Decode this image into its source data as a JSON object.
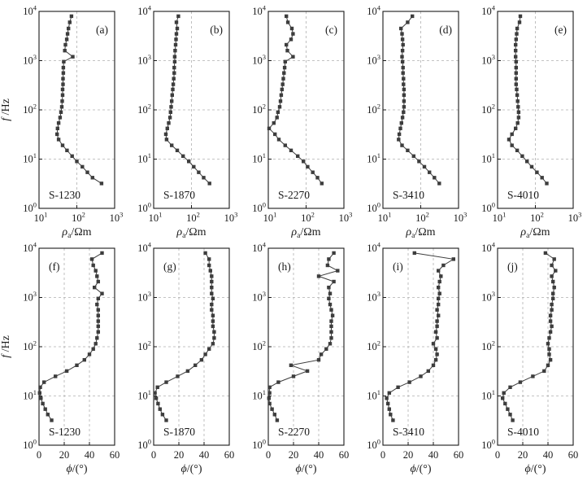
{
  "figure": {
    "background": "#ffffff",
    "curve_color": "#3d3d3d",
    "grid_color": "#b0b0b0",
    "axis_color": "#1a1a1a",
    "ylabel": "f/Hz",
    "y_tick_labels": [
      "10^0",
      "10^1",
      "10^2",
      "10^3",
      "10^4"
    ],
    "rows": [
      {
        "name": "apparent-resistivity",
        "xlabel": "ρa/Ωm",
        "xscale": "log",
        "xlim": [
          10,
          1000
        ],
        "xticks": [
          10,
          100,
          1000
        ],
        "xtick_labels": [
          "10^1",
          "10^2",
          "10^3"
        ],
        "xgrid": [
          100
        ]
      },
      {
        "name": "impedance-phase",
        "xlabel": "ϕ/(°)",
        "xscale": "linear",
        "xlim": [
          0,
          60
        ],
        "xticks": [
          0,
          20,
          40,
          60
        ],
        "xtick_labels": [
          "0",
          "20",
          "40",
          "60"
        ],
        "xgrid": [
          20,
          40
        ]
      }
    ],
    "ylim": [
      1,
      10000
    ],
    "ygrid": [
      10,
      100,
      1000
    ],
    "frequencies": [
      8000,
      6000,
      4500,
      3500,
      2700,
      2100,
      1600,
      1200,
      950,
      720,
      560,
      430,
      330,
      260,
      200,
      150,
      115,
      90,
      70,
      54,
      42,
      32,
      25,
      19,
      15,
      11.5,
      9,
      7,
      5.4,
      4.2,
      3.2
    ]
  },
  "chart_data": [
    {
      "type": "line",
      "panel": "(a)",
      "station": "S-1230",
      "row": 0,
      "col": 0,
      "ylabel_shown": true,
      "values": [
        72,
        65,
        60,
        57,
        54,
        50,
        48,
        78,
        45,
        44,
        44,
        43,
        43,
        42,
        42,
        41,
        40,
        38,
        36,
        33,
        31,
        30,
        33,
        42,
        55,
        75,
        100,
        140,
        190,
        260,
        450
      ]
    },
    {
      "type": "line",
      "panel": "(b)",
      "station": "S-1870",
      "row": 0,
      "col": 1,
      "ylabel_shown": false,
      "values": [
        45,
        40,
        42,
        40,
        39,
        38,
        37,
        36,
        36,
        35,
        35,
        34,
        33,
        32,
        31,
        30,
        29,
        28,
        27,
        25,
        23,
        21,
        22,
        30,
        42,
        60,
        85,
        115,
        155,
        210,
        300
      ]
    },
    {
      "type": "line",
      "panel": "(c)",
      "station": "S-2270",
      "row": 0,
      "col": 2,
      "ylabel_shown": false,
      "values": [
        30,
        33,
        42,
        45,
        40,
        30,
        32,
        45,
        28,
        27,
        26,
        25,
        24,
        23,
        22,
        21,
        20,
        18,
        17,
        14,
        10.5,
        15,
        19,
        28,
        40,
        60,
        85,
        110,
        150,
        200,
        260
      ]
    },
    {
      "type": "line",
      "panel": "(d)",
      "station": "S-3410",
      "row": 0,
      "col": 3,
      "ylabel_shown": false,
      "values": [
        60,
        45,
        30,
        32,
        33,
        34,
        33,
        32,
        33,
        34,
        34,
        35,
        35,
        36,
        36,
        36,
        36,
        35,
        33,
        31,
        29,
        27,
        26,
        32,
        45,
        65,
        90,
        125,
        170,
        230,
        310
      ]
    },
    {
      "type": "line",
      "panel": "(e)",
      "station": "S-4010",
      "row": 0,
      "col": 4,
      "ylabel_shown": false,
      "values": [
        40,
        38,
        33,
        32,
        31,
        30,
        30,
        30,
        31,
        31,
        31,
        31,
        31,
        32,
        33,
        34,
        35,
        36,
        36,
        34,
        30,
        24,
        20,
        24,
        33,
        45,
        60,
        80,
        110,
        150,
        200
      ]
    },
    {
      "type": "line",
      "panel": "(f)",
      "station": "S-1230",
      "row": 1,
      "col": 0,
      "ylabel_shown": true,
      "values": [
        50,
        42,
        43,
        45,
        46,
        47,
        44,
        50,
        47,
        46,
        47,
        47,
        47,
        47,
        47,
        46,
        45,
        43,
        40,
        36,
        30,
        22,
        13,
        4,
        1,
        0.5,
        1.5,
        3,
        5,
        7,
        10
      ]
    },
    {
      "type": "line",
      "panel": "(g)",
      "station": "S-1870",
      "row": 1,
      "col": 1,
      "ylabel_shown": false,
      "values": [
        41,
        44,
        44,
        45,
        46,
        46,
        46,
        46,
        47,
        46,
        46,
        47,
        47,
        47,
        48,
        48,
        47,
        44,
        41,
        38,
        33,
        27,
        19,
        10,
        3,
        1,
        2,
        3.5,
        5,
        7,
        10
      ]
    },
    {
      "type": "line",
      "panel": "(h)",
      "station": "S-2270",
      "row": 1,
      "col": 2,
      "ylabel_shown": false,
      "values": [
        52,
        48,
        47,
        55,
        40,
        52,
        48,
        49,
        48,
        49,
        50,
        51,
        50,
        50,
        50,
        50,
        49,
        46,
        42,
        40,
        18,
        31,
        20,
        8,
        1,
        1,
        0.5,
        1,
        3,
        5,
        7
      ]
    },
    {
      "type": "line",
      "panel": "(i)",
      "station": "S-3410",
      "row": 1,
      "col": 3,
      "ylabel_shown": false,
      "values": [
        25,
        56,
        48,
        44,
        46,
        45,
        44,
        45,
        44,
        44,
        43,
        44,
        43,
        43,
        42,
        43,
        40,
        42,
        43,
        42,
        40,
        36,
        30,
        21,
        12,
        5,
        3,
        4,
        5,
        6,
        8
      ]
    },
    {
      "type": "line",
      "panel": "(j)",
      "station": "S-4010",
      "row": 1,
      "col": 4,
      "ylabel_shown": false,
      "values": [
        38,
        45,
        43,
        46,
        43,
        44,
        45,
        44,
        44,
        43,
        43,
        42,
        42,
        43,
        42,
        41,
        40,
        41,
        41,
        42,
        40,
        37,
        28,
        18,
        10,
        5,
        4,
        6,
        8,
        10,
        12
      ]
    }
  ]
}
